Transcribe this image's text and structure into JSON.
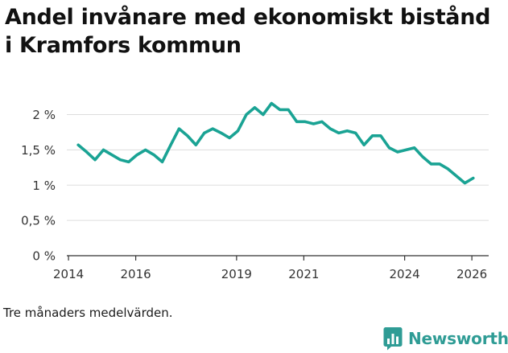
{
  "page": {
    "title": "Andel invånare med ekonomiskt bistånd i Kramfors kommun",
    "note": "Tre månaders medelvärden.",
    "brand": "Newsworthy",
    "brand_icon": "bar-chart-in-speech-bubble-icon"
  },
  "colors": {
    "line": "#1aa394",
    "brand": "#2f9c95",
    "grid": "#dddddd",
    "axis": "#333333"
  },
  "chart_data": {
    "type": "line",
    "title": "Andel invånare med ekonomiskt bistånd i Kramfors kommun",
    "xlabel": "",
    "ylabel": "",
    "unit": "%",
    "grid": true,
    "xlim": [
      2013.95,
      2026.5
    ],
    "ylim": [
      0,
      2.2
    ],
    "y_ticks": [
      {
        "value": 0,
        "label": "0 %"
      },
      {
        "value": 0.5,
        "label": "0,5 %"
      },
      {
        "value": 1,
        "label": "1 %"
      },
      {
        "value": 1.5,
        "label": "1,5 %"
      },
      {
        "value": 2,
        "label": "2 %"
      }
    ],
    "x_ticks": [
      {
        "value": 2014,
        "label": "2014"
      },
      {
        "value": 2016,
        "label": "2016"
      },
      {
        "value": 2019,
        "label": "2019"
      },
      {
        "value": 2021,
        "label": "2021"
      },
      {
        "value": 2024,
        "label": "2024"
      },
      {
        "value": 2026,
        "label": "2026"
      }
    ],
    "series": [
      {
        "name": "Andel invånare med ekonomiskt bistånd",
        "x": [
          2014.29,
          2014.54,
          2014.79,
          2015.04,
          2015.29,
          2015.54,
          2015.79,
          2016.04,
          2016.29,
          2016.54,
          2016.79,
          2017.04,
          2017.29,
          2017.54,
          2017.79,
          2018.04,
          2018.29,
          2018.54,
          2018.79,
          2019.04,
          2019.29,
          2019.54,
          2019.79,
          2020.04,
          2020.29,
          2020.54,
          2020.79,
          2021.04,
          2021.29,
          2021.54,
          2021.79,
          2022.04,
          2022.29,
          2022.54,
          2022.79,
          2023.04,
          2023.29,
          2023.54,
          2023.79,
          2024.04,
          2024.29,
          2024.54,
          2024.79,
          2025.04,
          2025.29,
          2025.54,
          2025.79,
          2026.04
        ],
        "values": [
          1.57,
          1.47,
          1.36,
          1.5,
          1.43,
          1.36,
          1.33,
          1.43,
          1.5,
          1.43,
          1.33,
          1.57,
          1.8,
          1.7,
          1.57,
          1.74,
          1.8,
          1.74,
          1.67,
          1.77,
          2.0,
          2.1,
          2.0,
          2.16,
          2.07,
          2.07,
          1.9,
          1.9,
          1.87,
          1.9,
          1.8,
          1.74,
          1.77,
          1.74,
          1.57,
          1.7,
          1.7,
          1.53,
          1.47,
          1.5,
          1.53,
          1.4,
          1.3,
          1.3,
          1.23,
          1.13,
          1.03,
          1.1
        ]
      }
    ]
  }
}
